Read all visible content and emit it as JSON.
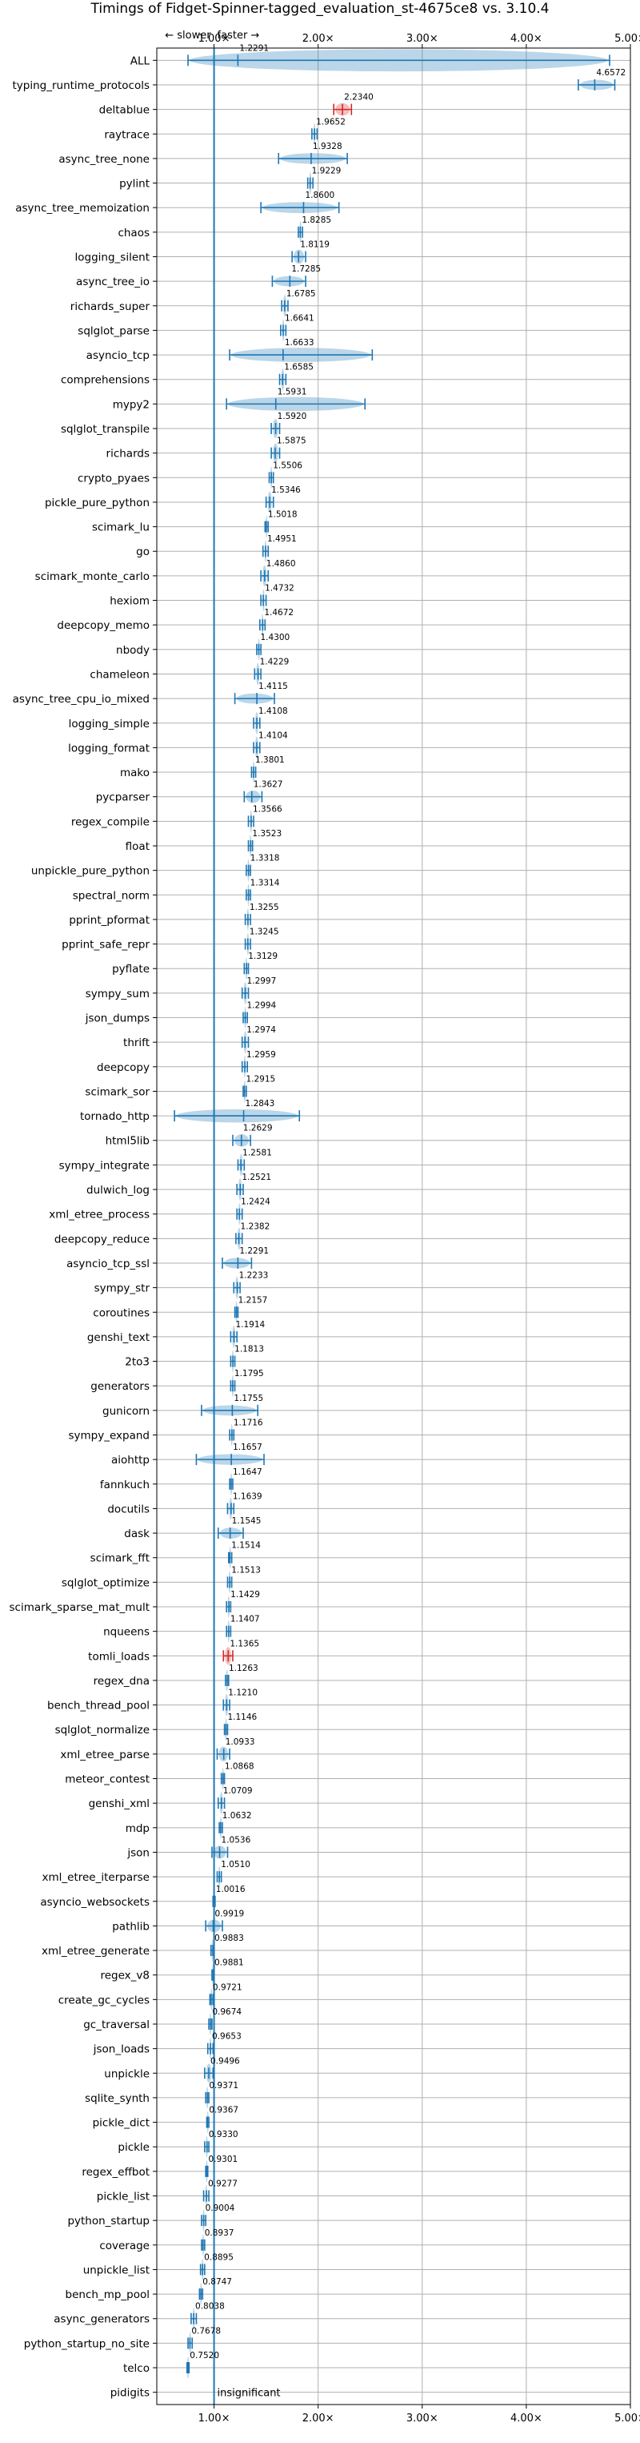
{
  "chart_data": {
    "type": "violin",
    "title": "Timings of Fidget-Spinner-tagged_evaluation_st-4675ce8 vs. 3.10.4",
    "slower_label": "← slower",
    "faster_label": "faster →",
    "x_ticks": [
      "1.00×",
      "2.00×",
      "3.00×",
      "4.00×",
      "5.00×"
    ],
    "x_tick_values": [
      1,
      2,
      3,
      4,
      5
    ],
    "xlim": [
      0.45,
      5.0
    ],
    "grid": true,
    "insignificant_label": "insignificant",
    "benchmarks": [
      {
        "name": "ALL",
        "value": 1.2291,
        "label": "1.2291",
        "low": 0.75,
        "high": 4.8
      },
      {
        "name": "typing_runtime_protocols",
        "value": 4.6572,
        "label": "4.6572",
        "low": 4.5,
        "high": 4.85
      },
      {
        "name": "deltablue",
        "value": 2.234,
        "label": "2.2340",
        "low": 2.15,
        "high": 2.32,
        "slower": true
      },
      {
        "name": "raytrace",
        "value": 1.9652,
        "label": "1.9652",
        "low": 1.94,
        "high": 1.99
      },
      {
        "name": "async_tree_none",
        "value": 1.9328,
        "label": "1.9328",
        "low": 1.62,
        "high": 2.28
      },
      {
        "name": "pylint",
        "value": 1.9229,
        "label": "1.9229",
        "low": 1.9,
        "high": 1.95
      },
      {
        "name": "async_tree_memoization",
        "value": 1.86,
        "label": "1.8600",
        "low": 1.45,
        "high": 2.2
      },
      {
        "name": "chaos",
        "value": 1.8285,
        "label": "1.8285",
        "low": 1.81,
        "high": 1.85
      },
      {
        "name": "logging_silent",
        "value": 1.8119,
        "label": "1.8119",
        "low": 1.75,
        "high": 1.88
      },
      {
        "name": "async_tree_io",
        "value": 1.7285,
        "label": "1.7285",
        "low": 1.56,
        "high": 1.88
      },
      {
        "name": "richards_super",
        "value": 1.6785,
        "label": "1.6785",
        "low": 1.65,
        "high": 1.71
      },
      {
        "name": "sqlglot_parse",
        "value": 1.6641,
        "label": "1.6641",
        "low": 1.64,
        "high": 1.69
      },
      {
        "name": "asyncio_tcp",
        "value": 1.6633,
        "label": "1.6633",
        "low": 1.15,
        "high": 2.52
      },
      {
        "name": "comprehensions",
        "value": 1.6585,
        "label": "1.6585",
        "low": 1.63,
        "high": 1.69
      },
      {
        "name": "mypy2",
        "value": 1.5931,
        "label": "1.5931",
        "low": 1.12,
        "high": 2.45
      },
      {
        "name": "sqlglot_transpile",
        "value": 1.592,
        "label": "1.5920",
        "low": 1.55,
        "high": 1.63
      },
      {
        "name": "richards",
        "value": 1.5875,
        "label": "1.5875",
        "low": 1.55,
        "high": 1.63
      },
      {
        "name": "crypto_pyaes",
        "value": 1.5506,
        "label": "1.5506",
        "low": 1.53,
        "high": 1.57
      },
      {
        "name": "pickle_pure_python",
        "value": 1.5346,
        "label": "1.5346",
        "low": 1.5,
        "high": 1.57
      },
      {
        "name": "scimark_lu",
        "value": 1.5018,
        "label": "1.5018",
        "low": 1.49,
        "high": 1.52
      },
      {
        "name": "go",
        "value": 1.4951,
        "label": "1.4951",
        "low": 1.47,
        "high": 1.52
      },
      {
        "name": "scimark_monte_carlo",
        "value": 1.486,
        "label": "1.4860",
        "low": 1.45,
        "high": 1.52
      },
      {
        "name": "hexiom",
        "value": 1.4732,
        "label": "1.4732",
        "low": 1.45,
        "high": 1.5
      },
      {
        "name": "deepcopy_memo",
        "value": 1.4672,
        "label": "1.4672",
        "low": 1.44,
        "high": 1.49
      },
      {
        "name": "nbody",
        "value": 1.43,
        "label": "1.4300",
        "low": 1.41,
        "high": 1.45
      },
      {
        "name": "chameleon",
        "value": 1.4229,
        "label": "1.4229",
        "low": 1.39,
        "high": 1.45
      },
      {
        "name": "async_tree_cpu_io_mixed",
        "value": 1.4115,
        "label": "1.4115",
        "low": 1.2,
        "high": 1.58
      },
      {
        "name": "logging_simple",
        "value": 1.4108,
        "label": "1.4108",
        "low": 1.38,
        "high": 1.44
      },
      {
        "name": "logging_format",
        "value": 1.4104,
        "label": "1.4104",
        "low": 1.38,
        "high": 1.44
      },
      {
        "name": "mako",
        "value": 1.3801,
        "label": "1.3801",
        "low": 1.36,
        "high": 1.4
      },
      {
        "name": "pycparser",
        "value": 1.3627,
        "label": "1.3627",
        "low": 1.29,
        "high": 1.46
      },
      {
        "name": "regex_compile",
        "value": 1.3566,
        "label": "1.3566",
        "low": 1.33,
        "high": 1.38
      },
      {
        "name": "float",
        "value": 1.3523,
        "label": "1.3523",
        "low": 1.33,
        "high": 1.37
      },
      {
        "name": "unpickle_pure_python",
        "value": 1.3318,
        "label": "1.3318",
        "low": 1.31,
        "high": 1.35
      },
      {
        "name": "spectral_norm",
        "value": 1.3314,
        "label": "1.3314",
        "low": 1.31,
        "high": 1.35
      },
      {
        "name": "pprint_pformat",
        "value": 1.3255,
        "label": "1.3255",
        "low": 1.3,
        "high": 1.35
      },
      {
        "name": "pprint_safe_repr",
        "value": 1.3245,
        "label": "1.3245",
        "low": 1.3,
        "high": 1.35
      },
      {
        "name": "pyflate",
        "value": 1.3129,
        "label": "1.3129",
        "low": 1.29,
        "high": 1.33
      },
      {
        "name": "sympy_sum",
        "value": 1.2997,
        "label": "1.2997",
        "low": 1.27,
        "high": 1.33
      },
      {
        "name": "json_dumps",
        "value": 1.2994,
        "label": "1.2994",
        "low": 1.28,
        "high": 1.32
      },
      {
        "name": "thrift",
        "value": 1.2974,
        "label": "1.2974",
        "low": 1.27,
        "high": 1.33
      },
      {
        "name": "deepcopy",
        "value": 1.2959,
        "label": "1.2959",
        "low": 1.27,
        "high": 1.32
      },
      {
        "name": "scimark_sor",
        "value": 1.2915,
        "label": "1.2915",
        "low": 1.28,
        "high": 1.31
      },
      {
        "name": "tornado_http",
        "value": 1.2843,
        "label": "1.2843",
        "low": 0.62,
        "high": 1.82
      },
      {
        "name": "html5lib",
        "value": 1.2629,
        "label": "1.2629",
        "low": 1.18,
        "high": 1.35
      },
      {
        "name": "sympy_integrate",
        "value": 1.2581,
        "label": "1.2581",
        "low": 1.23,
        "high": 1.29
      },
      {
        "name": "dulwich_log",
        "value": 1.2521,
        "label": "1.2521",
        "low": 1.22,
        "high": 1.28
      },
      {
        "name": "xml_etree_process",
        "value": 1.2424,
        "label": "1.2424",
        "low": 1.22,
        "high": 1.27
      },
      {
        "name": "deepcopy_reduce",
        "value": 1.2382,
        "label": "1.2382",
        "low": 1.21,
        "high": 1.27
      },
      {
        "name": "asyncio_tcp_ssl",
        "value": 1.2291,
        "label": "1.2291",
        "low": 1.08,
        "high": 1.36
      },
      {
        "name": "sympy_str",
        "value": 1.2233,
        "label": "1.2233",
        "low": 1.19,
        "high": 1.25
      },
      {
        "name": "coroutines",
        "value": 1.2157,
        "label": "1.2157",
        "low": 1.2,
        "high": 1.23
      },
      {
        "name": "genshi_text",
        "value": 1.1914,
        "label": "1.1914",
        "low": 1.16,
        "high": 1.22
      },
      {
        "name": "2to3",
        "value": 1.1813,
        "label": "1.1813",
        "low": 1.16,
        "high": 1.2
      },
      {
        "name": "generators",
        "value": 1.1795,
        "label": "1.1795",
        "low": 1.16,
        "high": 1.2
      },
      {
        "name": "gunicorn",
        "value": 1.1755,
        "label": "1.1755",
        "low": 0.88,
        "high": 1.42
      },
      {
        "name": "sympy_expand",
        "value": 1.1716,
        "label": "1.1716",
        "low": 1.15,
        "high": 1.19
      },
      {
        "name": "aiohttp",
        "value": 1.1657,
        "label": "1.1657",
        "low": 0.83,
        "high": 1.48
      },
      {
        "name": "fannkuch",
        "value": 1.1647,
        "label": "1.1647",
        "low": 1.15,
        "high": 1.18
      },
      {
        "name": "docutils",
        "value": 1.1639,
        "label": "1.1639",
        "low": 1.13,
        "high": 1.19
      },
      {
        "name": "dask",
        "value": 1.1545,
        "label": "1.1545",
        "low": 1.04,
        "high": 1.28
      },
      {
        "name": "scimark_fft",
        "value": 1.1514,
        "label": "1.1514",
        "low": 1.14,
        "high": 1.17
      },
      {
        "name": "sqlglot_optimize",
        "value": 1.1513,
        "label": "1.1513",
        "low": 1.13,
        "high": 1.17
      },
      {
        "name": "scimark_sparse_mat_mult",
        "value": 1.1429,
        "label": "1.1429",
        "low": 1.12,
        "high": 1.16
      },
      {
        "name": "nqueens",
        "value": 1.1407,
        "label": "1.1407",
        "low": 1.12,
        "high": 1.16
      },
      {
        "name": "tomli_loads",
        "value": 1.1365,
        "label": "1.1365",
        "low": 1.09,
        "high": 1.18,
        "slower": true
      },
      {
        "name": "regex_dna",
        "value": 1.1263,
        "label": "1.1263",
        "low": 1.11,
        "high": 1.14
      },
      {
        "name": "bench_thread_pool",
        "value": 1.121,
        "label": "1.1210",
        "low": 1.09,
        "high": 1.15
      },
      {
        "name": "sqlglot_normalize",
        "value": 1.1146,
        "label": "1.1146",
        "low": 1.1,
        "high": 1.13
      },
      {
        "name": "xml_etree_parse",
        "value": 1.0933,
        "label": "1.0933",
        "low": 1.03,
        "high": 1.15
      },
      {
        "name": "meteor_contest",
        "value": 1.0868,
        "label": "1.0868",
        "low": 1.07,
        "high": 1.1
      },
      {
        "name": "genshi_xml",
        "value": 1.0709,
        "label": "1.0709",
        "low": 1.04,
        "high": 1.1
      },
      {
        "name": "mdp",
        "value": 1.0632,
        "label": "1.0632",
        "low": 1.05,
        "high": 1.08
      },
      {
        "name": "json",
        "value": 1.0536,
        "label": "1.0536",
        "low": 0.98,
        "high": 1.13
      },
      {
        "name": "xml_etree_iterparse",
        "value": 1.051,
        "label": "1.0510",
        "low": 1.03,
        "high": 1.07
      },
      {
        "name": "asyncio_websockets",
        "value": 1.0016,
        "label": "1.0016",
        "low": 0.99,
        "high": 1.01
      },
      {
        "name": "pathlib",
        "value": 0.9919,
        "label": "0.9919",
        "low": 0.92,
        "high": 1.08
      },
      {
        "name": "xml_etree_generate",
        "value": 0.9883,
        "label": "0.9883",
        "low": 0.97,
        "high": 1.0
      },
      {
        "name": "regex_v8",
        "value": 0.9881,
        "label": "0.9881",
        "low": 0.98,
        "high": 1.0
      },
      {
        "name": "create_gc_cycles",
        "value": 0.9721,
        "label": "0.9721",
        "low": 0.96,
        "high": 0.99
      },
      {
        "name": "gc_traversal",
        "value": 0.9674,
        "label": "0.9674",
        "low": 0.95,
        "high": 0.98
      },
      {
        "name": "json_loads",
        "value": 0.9653,
        "label": "0.9653",
        "low": 0.94,
        "high": 0.99
      },
      {
        "name": "unpickle",
        "value": 0.9496,
        "label": "0.9496",
        "low": 0.91,
        "high": 0.99
      },
      {
        "name": "sqlite_synth",
        "value": 0.9371,
        "label": "0.9371",
        "low": 0.92,
        "high": 0.95
      },
      {
        "name": "pickle_dict",
        "value": 0.9367,
        "label": "0.9367",
        "low": 0.93,
        "high": 0.95
      },
      {
        "name": "pickle",
        "value": 0.933,
        "label": "0.9330",
        "low": 0.91,
        "high": 0.95
      },
      {
        "name": "regex_effbot",
        "value": 0.9301,
        "label": "0.9301",
        "low": 0.92,
        "high": 0.94
      },
      {
        "name": "pickle_list",
        "value": 0.9277,
        "label": "0.9277",
        "low": 0.9,
        "high": 0.95
      },
      {
        "name": "python_startup",
        "value": 0.9004,
        "label": "0.9004",
        "low": 0.88,
        "high": 0.92
      },
      {
        "name": "coverage",
        "value": 0.8937,
        "label": "0.8937",
        "low": 0.88,
        "high": 0.91
      },
      {
        "name": "unpickle_list",
        "value": 0.8895,
        "label": "0.8895",
        "low": 0.87,
        "high": 0.91
      },
      {
        "name": "bench_mp_pool",
        "value": 0.8747,
        "label": "0.8747",
        "low": 0.86,
        "high": 0.89
      },
      {
        "name": "async_generators",
        "value": 0.8038,
        "label": "0.8038",
        "low": 0.78,
        "high": 0.83
      },
      {
        "name": "python_startup_no_site",
        "value": 0.7678,
        "label": "0.7678",
        "low": 0.75,
        "high": 0.79
      },
      {
        "name": "telco",
        "value": 0.752,
        "label": "0.7520",
        "low": 0.74,
        "high": 0.76
      },
      {
        "name": "pidigits",
        "value": null,
        "label": "",
        "insignificant": true
      }
    ]
  }
}
